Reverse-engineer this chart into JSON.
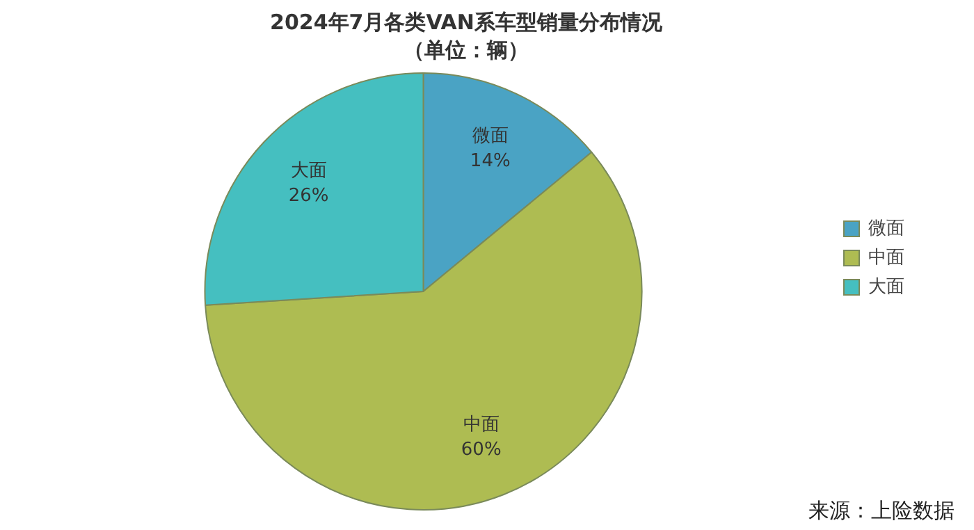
{
  "chart_data": {
    "type": "pie",
    "title": "2024年7月各类VAN系车型销量分布情况",
    "subtitle": "（单位：辆）",
    "categories": [
      "微面",
      "中面",
      "大面"
    ],
    "values": [
      14,
      60,
      26
    ],
    "value_labels": [
      "14%",
      "60%",
      "26%"
    ],
    "colors": [
      "#4aa3c4",
      "#aebc52",
      "#45bfc0"
    ],
    "legend": "right",
    "annotations": [
      "来源：上险数据"
    ]
  }
}
